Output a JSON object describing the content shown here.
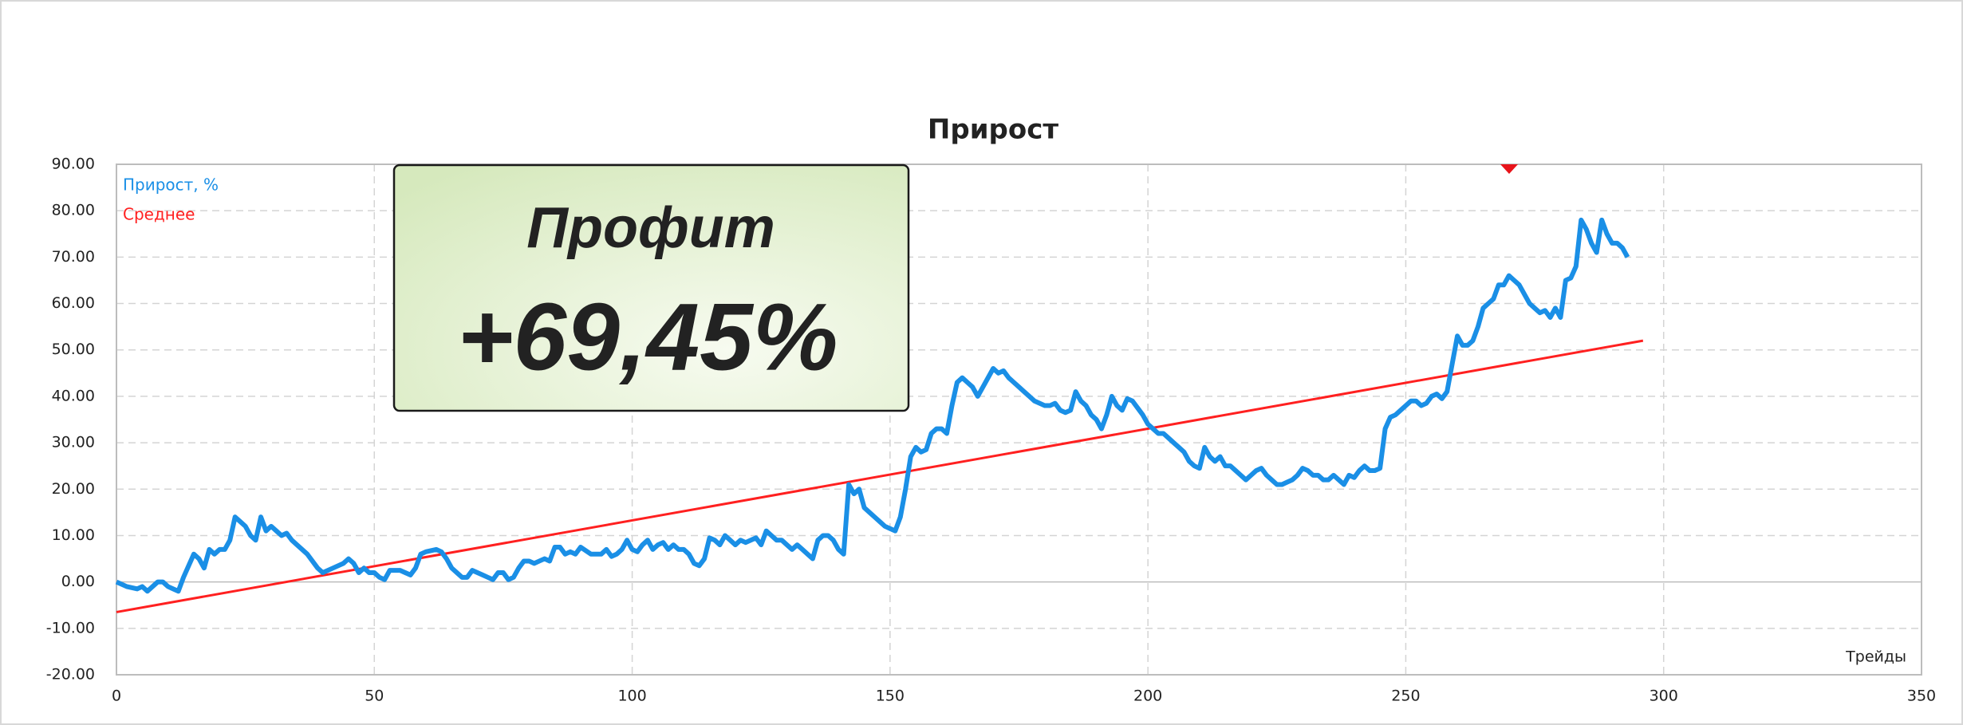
{
  "chart_data": {
    "type": "line",
    "title": "Прирост",
    "x_label": "Трейды",
    "annotations": [
      "Профит",
      "+69,45%"
    ],
    "xlim": [
      0,
      350
    ],
    "xticks": [
      0,
      50,
      100,
      150,
      200,
      250,
      300,
      350
    ],
    "ylim": [
      -20,
      90
    ],
    "yticks": [
      {
        "value": -20,
        "label": "-20.00"
      },
      {
        "value": -10,
        "label": "-10.00"
      },
      {
        "value": 0,
        "label": "0.00"
      },
      {
        "value": 10,
        "label": "10.00"
      },
      {
        "value": 20,
        "label": "20.00"
      },
      {
        "value": 30,
        "label": "30.00"
      },
      {
        "value": 40,
        "label": "40.00"
      },
      {
        "value": 50,
        "label": "50.00"
      },
      {
        "value": 60,
        "label": "60.00"
      },
      {
        "value": 70,
        "label": "70.00"
      },
      {
        "value": 80,
        "label": "80.00"
      },
      {
        "value": 90,
        "label": "90.00"
      }
    ],
    "grid": true,
    "legend": "upper left",
    "series": [
      {
        "name": "Прирост, %",
        "color": "#1a8fe6",
        "x": [
          0,
          2,
          4,
          5,
          6,
          8,
          9,
          10,
          11,
          12,
          13,
          15,
          16,
          17,
          18,
          19,
          20,
          21,
          22,
          23,
          24,
          25,
          26,
          27,
          28,
          29,
          30,
          31,
          32,
          33,
          34,
          35,
          37,
          39,
          40,
          42,
          44,
          45,
          46,
          47,
          48,
          49,
          50,
          51,
          52,
          53,
          55,
          57,
          58,
          59,
          60,
          62,
          63,
          64,
          65,
          66,
          67,
          68,
          69,
          70,
          71,
          72,
          73,
          74,
          75,
          76,
          77,
          78,
          79,
          80,
          81,
          82,
          83,
          84,
          85,
          86,
          87,
          88,
          89,
          90,
          92,
          94,
          95,
          96,
          97,
          98,
          99,
          100,
          101,
          102,
          103,
          104,
          105,
          106,
          107,
          108,
          109,
          110,
          111,
          112,
          113,
          114,
          115,
          116,
          117,
          118,
          119,
          120,
          121,
          122,
          123,
          124,
          125,
          126,
          127,
          128,
          129,
          130,
          131,
          132,
          133,
          134,
          135,
          136,
          137,
          138,
          139,
          140,
          141,
          142,
          143,
          144,
          145,
          146,
          147,
          148,
          149,
          150,
          151,
          152,
          153,
          154,
          155,
          156,
          157,
          158,
          159,
          160,
          161,
          162,
          163,
          164,
          165,
          166,
          167,
          168,
          169,
          170,
          171,
          172,
          173,
          174,
          175,
          176,
          177,
          178,
          179,
          180,
          181,
          182,
          183,
          184,
          185,
          186,
          187,
          188,
          189,
          190,
          191,
          192,
          193,
          194,
          195,
          196,
          197,
          198,
          199,
          200,
          201,
          202,
          203,
          204,
          205,
          206,
          207,
          208,
          209,
          210,
          211,
          212,
          213,
          214,
          215,
          216,
          217,
          218,
          219,
          220,
          221,
          222,
          223,
          224,
          225,
          226,
          227,
          228,
          229,
          230,
          231,
          232,
          233,
          234,
          235,
          236,
          237,
          238,
          239,
          240,
          241,
          242,
          243,
          244,
          245,
          246,
          247,
          248,
          249,
          250,
          251,
          252,
          253,
          254,
          255,
          256,
          257,
          258,
          259,
          260,
          261,
          262,
          263,
          264,
          265,
          266,
          267,
          268,
          269,
          270,
          271,
          272,
          273,
          274,
          275,
          276,
          277,
          278,
          279,
          280,
          281,
          282,
          283,
          284,
          285,
          286,
          287,
          288,
          289,
          290,
          291,
          292,
          293
        ],
        "values": [
          0,
          -1,
          -1.5,
          -1,
          -2,
          0,
          0,
          -1,
          -1.5,
          -2,
          1,
          6,
          5,
          3,
          7,
          6,
          7,
          7,
          9,
          14,
          13,
          12,
          10,
          9,
          14,
          11,
          12,
          11,
          10,
          10.5,
          9,
          8,
          6,
          3,
          2,
          3,
          4,
          5,
          4,
          2,
          3,
          2,
          2,
          1,
          0.5,
          2.5,
          2.5,
          1.5,
          3,
          6,
          6.5,
          7,
          6.5,
          5,
          3,
          2,
          1,
          1,
          2.5,
          2,
          1.5,
          1,
          0.5,
          2,
          2,
          0.5,
          1,
          3,
          4.5,
          4.5,
          4,
          4.5,
          5,
          4.5,
          7.5,
          7.5,
          6,
          6.5,
          6,
          7.5,
          6,
          6,
          7,
          5.5,
          6,
          7,
          9,
          7,
          6.5,
          8,
          9,
          7,
          8,
          8.5,
          7,
          8,
          7,
          7,
          6,
          4,
          3.5,
          5,
          9.5,
          9,
          8,
          10,
          9,
          8,
          9,
          8.5,
          9,
          9.5,
          8,
          11,
          10,
          9,
          9,
          8,
          7,
          8,
          7,
          6,
          5,
          9,
          10,
          10,
          9,
          7,
          6,
          21,
          19,
          20,
          16,
          15,
          14,
          13,
          12,
          11.5,
          11,
          14,
          20,
          27,
          29,
          28,
          28.5,
          32,
          33,
          33,
          32,
          38,
          43,
          44,
          43,
          42,
          40,
          42,
          44,
          46,
          45,
          45.5,
          44,
          43,
          42,
          41,
          40,
          39,
          38.5,
          38,
          38,
          38.5,
          37,
          36.5,
          37,
          41,
          39,
          38,
          36,
          35,
          33,
          36,
          40,
          38,
          37,
          39.5,
          39,
          37.5,
          36,
          34,
          33,
          32,
          32,
          31,
          30,
          29,
          28,
          26,
          25,
          24.5,
          29,
          27,
          26,
          27,
          25,
          25,
          24,
          23,
          22,
          23,
          24,
          24.5,
          23,
          22,
          21,
          21,
          21.5,
          22,
          23,
          24.5,
          24,
          23,
          23,
          22,
          22,
          23,
          22,
          21,
          23,
          22.5,
          24,
          25,
          24,
          24,
          24.5,
          33,
          35.5,
          36,
          37,
          38,
          39,
          39,
          38,
          38.5,
          40,
          40.5,
          39.5,
          41,
          47,
          53,
          51,
          51,
          52,
          55,
          59,
          60,
          61,
          64,
          64,
          66,
          65,
          64,
          62,
          60,
          59,
          58,
          58.5,
          57,
          59,
          57,
          65,
          65.5,
          68,
          78,
          76,
          73,
          71,
          78,
          75,
          73,
          73,
          72,
          70
        ]
      },
      {
        "name": "Среднее",
        "color": "#ff2020",
        "x": [
          0,
          296
        ],
        "values": [
          -6.5,
          52
        ]
      }
    ]
  }
}
